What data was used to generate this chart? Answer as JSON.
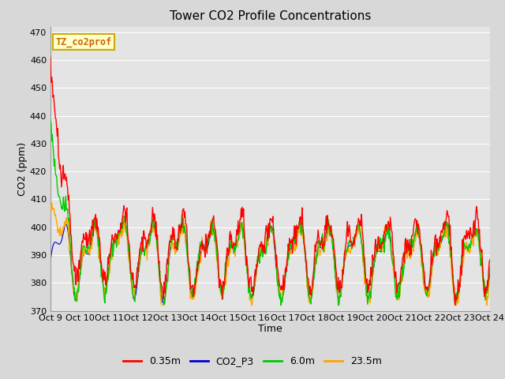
{
  "title": "Tower CO2 Profile Concentrations",
  "xlabel": "Time",
  "ylabel": "CO2 (ppm)",
  "ylim": [
    370,
    472
  ],
  "yticks": [
    370,
    380,
    390,
    400,
    410,
    420,
    430,
    440,
    450,
    460,
    470
  ],
  "fig_bg_color": "#d8d8d8",
  "plot_bg_color": "#e4e4e4",
  "legend_label": "TZ_co2prof",
  "series_colors": [
    "#ff0000",
    "#0000cd",
    "#00cc00",
    "#ffa500"
  ],
  "series_labels": [
    "0.35m",
    "CO2_P3",
    "6.0m",
    "23.5m"
  ],
  "n_points": 720,
  "x_start": 9.0,
  "x_end": 24.0,
  "xtick_positions": [
    9,
    10,
    11,
    12,
    13,
    14,
    15,
    16,
    17,
    18,
    19,
    20,
    21,
    22,
    23,
    24
  ],
  "xtick_labels": [
    "Oct 9",
    "Oct 10",
    "Oct 11",
    "Oct 12",
    "Oct 13",
    "Oct 14",
    "Oct 15",
    "Oct 16",
    "Oct 17",
    "Oct 18",
    "Oct 19",
    "Oct 20",
    "Oct 21",
    "Oct 22",
    "Oct 23",
    "Oct 24"
  ],
  "title_fontsize": 11,
  "tick_fontsize": 8,
  "label_fontsize": 9
}
